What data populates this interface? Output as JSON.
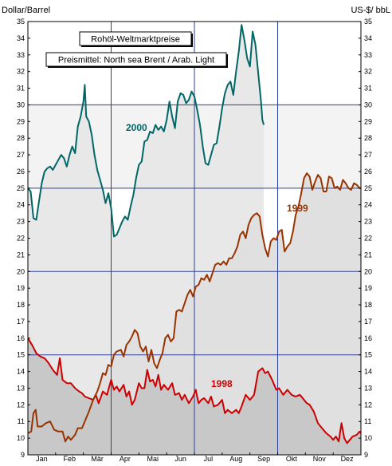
{
  "chart_data": {
    "type": "line",
    "title": "Rohöl-Weltmarktpreise",
    "subtitle": "Preismittel: North sea Brent / Arab. Light",
    "ylabel_left": "Dollar/Barrel",
    "ylabel_right": "US-$/ bbL",
    "ylim": [
      9,
      35
    ],
    "y_ticks": [
      9,
      10,
      11,
      12,
      13,
      14,
      15,
      16,
      17,
      18,
      19,
      20,
      21,
      22,
      23,
      24,
      25,
      26,
      27,
      28,
      29,
      30,
      31,
      32,
      33,
      34,
      35
    ],
    "months": [
      "Jan",
      "Feb",
      "Mär",
      "Apr",
      "Mai",
      "Jun",
      "Jul",
      "Aug",
      "Sep",
      "Okt",
      "Nov",
      "Dez"
    ],
    "grid": true,
    "series": [
      {
        "name": "1998",
        "color": "#cc0000",
        "points": [
          [
            0.0,
            16.0
          ],
          [
            0.15,
            15.6
          ],
          [
            0.3,
            15.1
          ],
          [
            0.45,
            14.9
          ],
          [
            0.6,
            14.8
          ],
          [
            0.75,
            14.5
          ],
          [
            0.9,
            14.1
          ],
          [
            1.05,
            13.8
          ],
          [
            1.15,
            14.8
          ],
          [
            1.25,
            13.5
          ],
          [
            1.4,
            13.3
          ],
          [
            1.55,
            13.3
          ],
          [
            1.7,
            13.0
          ],
          [
            1.85,
            12.8
          ],
          [
            1.95,
            12.7
          ],
          [
            2.05,
            12.5
          ],
          [
            2.2,
            12.4
          ],
          [
            2.35,
            12.3
          ],
          [
            2.45,
            12.6
          ],
          [
            2.55,
            12.1
          ],
          [
            2.7,
            12.8
          ],
          [
            2.85,
            12.6
          ],
          [
            3.0,
            13.5
          ],
          [
            3.1,
            12.9
          ],
          [
            3.2,
            13.1
          ],
          [
            3.3,
            12.8
          ],
          [
            3.45,
            13.2
          ],
          [
            3.55,
            12.5
          ],
          [
            3.65,
            12.8
          ],
          [
            3.75,
            12.0
          ],
          [
            3.85,
            12.3
          ],
          [
            4.0,
            13.3
          ],
          [
            4.1,
            13.0
          ],
          [
            4.2,
            13.0
          ],
          [
            4.3,
            14.1
          ],
          [
            4.4,
            13.4
          ],
          [
            4.5,
            13.5
          ],
          [
            4.6,
            13.1
          ],
          [
            4.7,
            13.8
          ],
          [
            4.8,
            12.9
          ],
          [
            4.9,
            13.2
          ],
          [
            5.05,
            12.9
          ],
          [
            5.2,
            13.3
          ],
          [
            5.3,
            12.6
          ],
          [
            5.45,
            12.7
          ],
          [
            5.55,
            12.3
          ],
          [
            5.65,
            12.6
          ],
          [
            5.8,
            12.1
          ],
          [
            5.95,
            12.5
          ],
          [
            6.05,
            12.9
          ],
          [
            6.15,
            12.1
          ],
          [
            6.25,
            12.3
          ],
          [
            6.35,
            12.4
          ],
          [
            6.5,
            12.1
          ],
          [
            6.6,
            12.5
          ],
          [
            6.7,
            11.9
          ],
          [
            6.85,
            12.0
          ],
          [
            7.0,
            12.3
          ],
          [
            7.1,
            11.5
          ],
          [
            7.2,
            11.7
          ],
          [
            7.35,
            11.5
          ],
          [
            7.5,
            11.7
          ],
          [
            7.6,
            11.5
          ],
          [
            7.7,
            11.9
          ],
          [
            7.85,
            12.6
          ],
          [
            8.0,
            12.3
          ],
          [
            8.15,
            12.6
          ],
          [
            8.3,
            14.0
          ],
          [
            8.45,
            14.2
          ],
          [
            8.55,
            13.9
          ],
          [
            8.65,
            14.0
          ],
          [
            8.8,
            13.5
          ],
          [
            8.95,
            12.9
          ],
          [
            9.05,
            13.0
          ],
          [
            9.2,
            12.6
          ],
          [
            9.35,
            12.9
          ],
          [
            9.5,
            12.6
          ],
          [
            9.65,
            12.5
          ],
          [
            9.8,
            12.6
          ],
          [
            9.95,
            12.3
          ],
          [
            10.05,
            12.1
          ],
          [
            10.15,
            12.0
          ],
          [
            10.3,
            11.6
          ],
          [
            10.45,
            10.9
          ],
          [
            10.6,
            10.6
          ],
          [
            10.75,
            10.3
          ],
          [
            10.9,
            10.1
          ],
          [
            11.0,
            9.9
          ],
          [
            11.1,
            10.1
          ],
          [
            11.2,
            9.8
          ],
          [
            11.3,
            10.9
          ],
          [
            11.4,
            10.0
          ],
          [
            11.5,
            9.7
          ],
          [
            11.6,
            9.9
          ],
          [
            11.7,
            10.1
          ],
          [
            11.85,
            10.2
          ],
          [
            11.95,
            10.4
          ],
          [
            12.0,
            10.3
          ]
        ]
      },
      {
        "name": "1999",
        "color": "#993300",
        "points": [
          [
            0.0,
            10.3
          ],
          [
            0.12,
            10.4
          ],
          [
            0.2,
            11.5
          ],
          [
            0.28,
            11.7
          ],
          [
            0.35,
            10.7
          ],
          [
            0.5,
            10.7
          ],
          [
            0.65,
            10.9
          ],
          [
            0.8,
            11.0
          ],
          [
            0.95,
            10.5
          ],
          [
            1.1,
            10.4
          ],
          [
            1.25,
            10.4
          ],
          [
            1.35,
            9.8
          ],
          [
            1.45,
            10.1
          ],
          [
            1.55,
            9.9
          ],
          [
            1.7,
            10.2
          ],
          [
            1.8,
            10.6
          ],
          [
            1.95,
            10.6
          ],
          [
            2.05,
            11.0
          ],
          [
            2.2,
            11.6
          ],
          [
            2.35,
            12.3
          ],
          [
            2.5,
            12.8
          ],
          [
            2.6,
            13.3
          ],
          [
            2.7,
            13.9
          ],
          [
            2.8,
            13.8
          ],
          [
            2.9,
            14.4
          ],
          [
            3.0,
            14.3
          ],
          [
            3.1,
            15.0
          ],
          [
            3.2,
            15.2
          ],
          [
            3.35,
            15.3
          ],
          [
            3.45,
            14.9
          ],
          [
            3.55,
            15.6
          ],
          [
            3.65,
            15.8
          ],
          [
            3.75,
            16.1
          ],
          [
            3.85,
            16.5
          ],
          [
            3.95,
            16.3
          ],
          [
            4.05,
            15.5
          ],
          [
            4.15,
            15.2
          ],
          [
            4.25,
            15.5
          ],
          [
            4.35,
            14.6
          ],
          [
            4.45,
            15.3
          ],
          [
            4.55,
            14.5
          ],
          [
            4.65,
            14.2
          ],
          [
            4.75,
            14.7
          ],
          [
            4.85,
            15.1
          ],
          [
            4.95,
            16.0
          ],
          [
            5.05,
            16.2
          ],
          [
            5.15,
            15.8
          ],
          [
            5.25,
            16.0
          ],
          [
            5.35,
            17.6
          ],
          [
            5.45,
            17.7
          ],
          [
            5.55,
            17.6
          ],
          [
            5.65,
            18.1
          ],
          [
            5.75,
            18.6
          ],
          [
            5.85,
            18.9
          ],
          [
            5.95,
            18.5
          ],
          [
            6.05,
            19.1
          ],
          [
            6.15,
            19.2
          ],
          [
            6.25,
            19.6
          ],
          [
            6.35,
            19.5
          ],
          [
            6.45,
            19.8
          ],
          [
            6.55,
            19.4
          ],
          [
            6.65,
            19.9
          ],
          [
            6.75,
            20.4
          ],
          [
            6.85,
            20.5
          ],
          [
            6.95,
            20.4
          ],
          [
            7.05,
            20.6
          ],
          [
            7.15,
            20.4
          ],
          [
            7.25,
            20.8
          ],
          [
            7.35,
            20.8
          ],
          [
            7.45,
            21.1
          ],
          [
            7.55,
            21.5
          ],
          [
            7.65,
            22.2
          ],
          [
            7.75,
            22.4
          ],
          [
            7.85,
            22.0
          ],
          [
            7.95,
            22.8
          ],
          [
            8.05,
            23.2
          ],
          [
            8.15,
            23.4
          ],
          [
            8.25,
            23.5
          ],
          [
            8.35,
            23.3
          ],
          [
            8.45,
            22.2
          ],
          [
            8.55,
            21.4
          ],
          [
            8.65,
            20.9
          ],
          [
            8.75,
            21.8
          ],
          [
            8.85,
            22.0
          ],
          [
            8.95,
            21.9
          ],
          [
            9.05,
            22.4
          ],
          [
            9.15,
            22.5
          ],
          [
            9.25,
            21.2
          ],
          [
            9.35,
            21.5
          ],
          [
            9.45,
            21.7
          ],
          [
            9.55,
            22.4
          ],
          [
            9.65,
            23.4
          ],
          [
            9.75,
            23.9
          ],
          [
            9.85,
            24.7
          ],
          [
            9.95,
            25.6
          ],
          [
            10.05,
            25.9
          ],
          [
            10.15,
            25.7
          ],
          [
            10.25,
            24.9
          ],
          [
            10.35,
            25.4
          ],
          [
            10.45,
            25.8
          ],
          [
            10.55,
            25.6
          ],
          [
            10.65,
            24.8
          ],
          [
            10.75,
            24.8
          ],
          [
            10.85,
            25.7
          ],
          [
            10.95,
            25.6
          ],
          [
            11.05,
            25.0
          ],
          [
            11.15,
            25.1
          ],
          [
            11.25,
            24.9
          ],
          [
            11.35,
            25.5
          ],
          [
            11.45,
            25.3
          ],
          [
            11.55,
            25.0
          ],
          [
            11.65,
            24.9
          ],
          [
            11.75,
            25.3
          ],
          [
            11.85,
            25.2
          ],
          [
            11.95,
            25.0
          ],
          [
            12.0,
            25.0
          ]
        ]
      },
      {
        "name": "2000",
        "color": "#006666",
        "points": [
          [
            0.0,
            25.0
          ],
          [
            0.1,
            24.8
          ],
          [
            0.2,
            23.2
          ],
          [
            0.3,
            23.1
          ],
          [
            0.4,
            24.2
          ],
          [
            0.5,
            25.3
          ],
          [
            0.6,
            26.0
          ],
          [
            0.7,
            26.2
          ],
          [
            0.8,
            26.3
          ],
          [
            0.9,
            26.1
          ],
          [
            1.0,
            26.4
          ],
          [
            1.1,
            26.7
          ],
          [
            1.2,
            27.0
          ],
          [
            1.3,
            26.8
          ],
          [
            1.4,
            26.3
          ],
          [
            1.5,
            27.0
          ],
          [
            1.6,
            27.5
          ],
          [
            1.7,
            27.1
          ],
          [
            1.8,
            28.7
          ],
          [
            1.9,
            29.3
          ],
          [
            2.0,
            30.2
          ],
          [
            2.05,
            31.2
          ],
          [
            2.1,
            29.3
          ],
          [
            2.2,
            29.0
          ],
          [
            2.3,
            28.2
          ],
          [
            2.4,
            27.0
          ],
          [
            2.5,
            26.1
          ],
          [
            2.6,
            25.5
          ],
          [
            2.7,
            24.9
          ],
          [
            2.8,
            24.1
          ],
          [
            2.9,
            24.7
          ],
          [
            3.0,
            23.8
          ],
          [
            3.1,
            22.1
          ],
          [
            3.2,
            22.2
          ],
          [
            3.3,
            22.6
          ],
          [
            3.4,
            23.0
          ],
          [
            3.5,
            23.3
          ],
          [
            3.6,
            23.1
          ],
          [
            3.7,
            23.9
          ],
          [
            3.8,
            24.6
          ],
          [
            3.9,
            25.6
          ],
          [
            4.0,
            26.4
          ],
          [
            4.1,
            26.6
          ],
          [
            4.2,
            27.8
          ],
          [
            4.3,
            27.9
          ],
          [
            4.4,
            28.4
          ],
          [
            4.5,
            28.3
          ],
          [
            4.6,
            28.8
          ],
          [
            4.7,
            28.5
          ],
          [
            4.8,
            28.7
          ],
          [
            4.9,
            28.4
          ],
          [
            5.0,
            29.1
          ],
          [
            5.1,
            30.2
          ],
          [
            5.2,
            29.3
          ],
          [
            5.3,
            28.6
          ],
          [
            5.4,
            30.2
          ],
          [
            5.5,
            30.7
          ],
          [
            5.6,
            30.6
          ],
          [
            5.7,
            30.1
          ],
          [
            5.8,
            30.3
          ],
          [
            5.9,
            30.8
          ],
          [
            6.0,
            30.5
          ],
          [
            6.1,
            29.7
          ],
          [
            6.2,
            28.8
          ],
          [
            6.3,
            27.5
          ],
          [
            6.4,
            26.5
          ],
          [
            6.5,
            26.4
          ],
          [
            6.6,
            27.0
          ],
          [
            6.7,
            27.6
          ],
          [
            6.8,
            27.7
          ],
          [
            6.9,
            28.7
          ],
          [
            7.0,
            29.8
          ],
          [
            7.1,
            30.7
          ],
          [
            7.2,
            31.2
          ],
          [
            7.3,
            31.4
          ],
          [
            7.4,
            30.6
          ],
          [
            7.5,
            32.0
          ],
          [
            7.6,
            33.2
          ],
          [
            7.7,
            34.8
          ],
          [
            7.8,
            33.9
          ],
          [
            7.9,
            32.8
          ],
          [
            8.0,
            32.3
          ],
          [
            8.1,
            34.4
          ],
          [
            8.2,
            33.6
          ],
          [
            8.3,
            31.9
          ],
          [
            8.4,
            30.2
          ],
          [
            8.45,
            29.1
          ],
          [
            8.5,
            28.8
          ]
        ]
      }
    ]
  }
}
